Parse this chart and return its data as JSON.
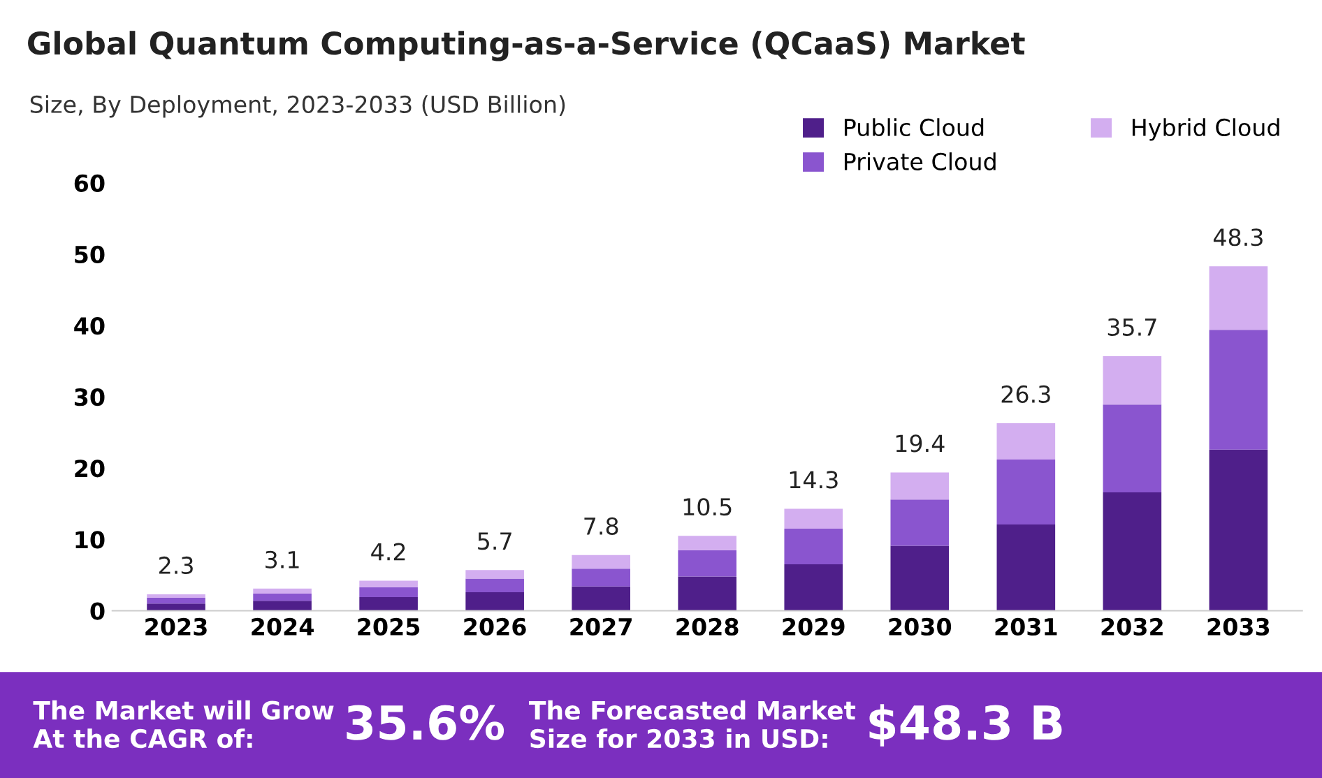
{
  "chart_data": {
    "type": "bar",
    "stacked": true,
    "title": "Global Quantum Computing-as-a-Service (QCaaS) Market",
    "subtitle": "Size, By Deployment, 2023-2033 (USD Billion)",
    "categories": [
      "2023",
      "2024",
      "2025",
      "2026",
      "2027",
      "2028",
      "2029",
      "2030",
      "2031",
      "2032",
      "2033"
    ],
    "series": [
      {
        "name": "Public Cloud",
        "color": "#4f1f8a",
        "values": [
          1.0,
          1.4,
          1.9,
          2.6,
          3.4,
          4.8,
          6.5,
          9.1,
          12.1,
          16.6,
          22.6
        ]
      },
      {
        "name": "Private Cloud",
        "color": "#8a55cf",
        "values": [
          0.8,
          1.0,
          1.4,
          1.9,
          2.5,
          3.7,
          5.0,
          6.5,
          9.1,
          12.3,
          16.8
        ]
      },
      {
        "name": "Hybrid Cloud",
        "color": "#d3aef0",
        "values": [
          0.5,
          0.7,
          0.9,
          1.2,
          1.9,
          2.0,
          2.8,
          3.8,
          5.1,
          6.8,
          8.9
        ]
      }
    ],
    "totals": [
      "2.3",
      "3.1",
      "4.2",
      "5.7",
      "7.8",
      "10.5",
      "14.3",
      "19.4",
      "26.3",
      "35.7",
      "48.3"
    ],
    "ylim": [
      0,
      60
    ],
    "yticks": [
      0,
      10,
      20,
      30,
      40,
      50,
      60
    ],
    "grid": false,
    "legend": "top right",
    "annotations": [
      "The Market will Grow\nAt the CAGR of:",
      "35.6%",
      "The Forecasted Market\nSize for 2033 in USD:",
      "$48.3 B"
    ]
  }
}
